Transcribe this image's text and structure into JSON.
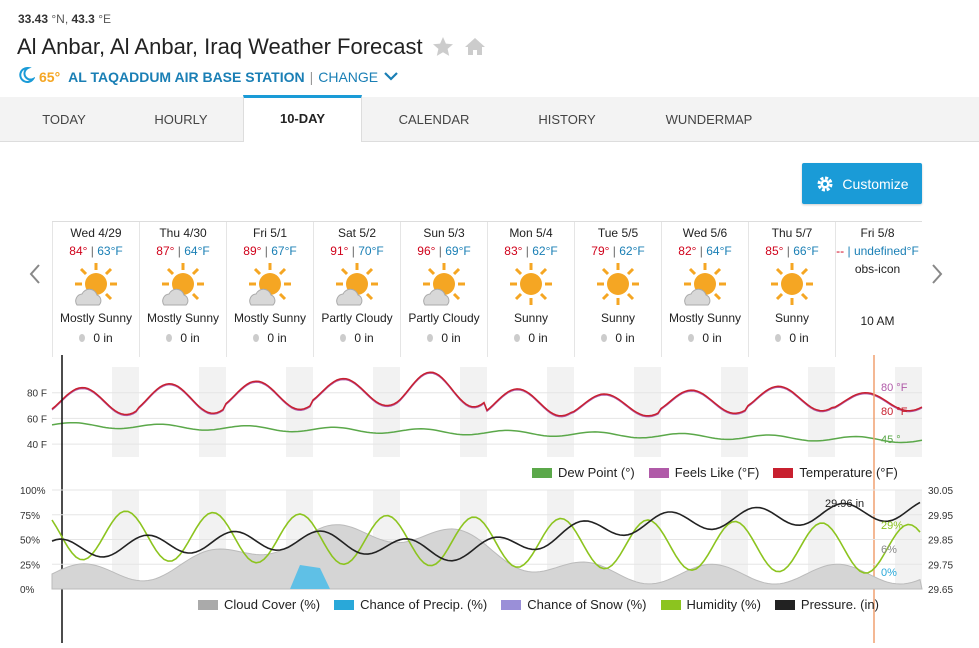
{
  "location": {
    "lat": "33.43",
    "lat_unit": " °N, ",
    "lon": "43.3",
    "lon_unit": " °E",
    "title": "Al Anbar, Al Anbar, Iraq Weather Forecast",
    "station_temp": "65°",
    "station_name": "AL TAQADDUM AIR BASE STATION",
    "separator": "|",
    "change_label": "CHANGE"
  },
  "tabs": [
    "TODAY",
    "HOURLY",
    "10-DAY",
    "CALENDAR",
    "HISTORY",
    "WUNDERMAP"
  ],
  "active_tab": "10-DAY",
  "customize_label": "Customize",
  "days": [
    {
      "label": "Wed 4/29",
      "hi": "84°",
      "lo": "63°F",
      "cond": "Mostly Sunny",
      "precip": "0 in",
      "icon": "mostly-sunny-icon"
    },
    {
      "label": "Thu 4/30",
      "hi": "87°",
      "lo": "64°F",
      "cond": "Mostly Sunny",
      "precip": "0 in",
      "icon": "mostly-sunny-icon"
    },
    {
      "label": "Fri 5/1",
      "hi": "89°",
      "lo": "67°F",
      "cond": "Mostly Sunny",
      "precip": "0 in",
      "icon": "mostly-sunny-icon"
    },
    {
      "label": "Sat 5/2",
      "hi": "91°",
      "lo": "70°F",
      "cond": "Partly Cloudy",
      "precip": "0 in",
      "icon": "partly-cloudy-icon"
    },
    {
      "label": "Sun 5/3",
      "hi": "96°",
      "lo": "69°F",
      "cond": "Partly Cloudy",
      "precip": "0 in",
      "icon": "partly-cloudy-icon"
    },
    {
      "label": "Mon 5/4",
      "hi": "83°",
      "lo": "62°F",
      "cond": "Sunny",
      "precip": "0 in",
      "icon": "sunny-icon"
    },
    {
      "label": "Tue 5/5",
      "hi": "79°",
      "lo": "62°F",
      "cond": "Sunny",
      "precip": "0 in",
      "icon": "sunny-icon"
    },
    {
      "label": "Wed 5/6",
      "hi": "82°",
      "lo": "64°F",
      "cond": "Mostly Sunny",
      "precip": "0 in",
      "icon": "mostly-sunny-icon"
    },
    {
      "label": "Thu 5/7",
      "hi": "85°",
      "lo": "66°F",
      "cond": "Sunny",
      "precip": "0 in",
      "icon": "sunny-icon"
    }
  ],
  "last_day": {
    "label": "Fri 5/8",
    "hi": "--",
    "lo": " | undefined°F",
    "obs": "obs-icon",
    "time": "10 AM"
  },
  "temp_chart": {
    "y_ticks": [
      "80 F",
      "60 F",
      "40 F"
    ],
    "readout_feels": "80 °F",
    "readout_temp": "80 °F",
    "readout_dew": "45 °",
    "legend": [
      {
        "label": "Dew Point (°)",
        "color": "#5ba84a"
      },
      {
        "label": "Feels Like (°F)",
        "color": "#b05aa8"
      },
      {
        "label": "Temperature (°F)",
        "color": "#c8202f"
      }
    ]
  },
  "precip_chart": {
    "y_ticks_left": [
      "100%",
      "75%",
      "50%",
      "25%",
      "0%"
    ],
    "y_ticks_right": [
      "30.05",
      "29.95",
      "29.85",
      "29.75",
      "29.65"
    ],
    "pressure_readout": "29.96 in",
    "readout_humidity": "29%",
    "readout_cloud": "6%",
    "readout_precip": "0%",
    "legend": [
      {
        "label": "Cloud Cover (%)",
        "color": "#aaaaaa"
      },
      {
        "label": "Chance of Precip. (%)",
        "color": "#29a8d9"
      },
      {
        "label": "Chance of Snow (%)",
        "color": "#9a8fd8"
      },
      {
        "label": "Humidity (%)",
        "color": "#8cc41f"
      },
      {
        "label": "Pressure. (in)",
        "color": "#222222"
      }
    ]
  }
}
